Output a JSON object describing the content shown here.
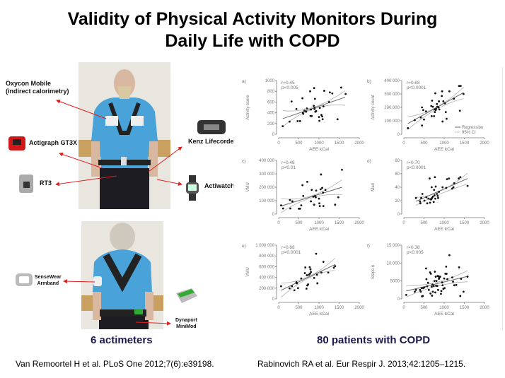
{
  "title": {
    "line1": "Validity of Physical Activity Monitors During",
    "line2": "Daily Life with COPD"
  },
  "devices": {
    "oxycon": {
      "line1": "Oxycon Mobile",
      "line2": "(indirect calorimetry)"
    },
    "actigraph": "Actigraph GT3X",
    "rt3": "RT3",
    "kenz": "Kenz Lifecorder",
    "actiwatch": "Actiwatch",
    "sensewear": {
      "line1": "SenseWear",
      "line2": "Armband"
    },
    "dynaport": {
      "line1": "Dynaport",
      "line2": "MiniMod"
    }
  },
  "captions": {
    "left": "6 actimeters",
    "right": "80 patients with COPD"
  },
  "references": {
    "left": "Van Remoortel H et al. PLoS One 2012;7(6):e39198.",
    "right": "Rabinovich RA et al. Eur Respir J. 2013;42:1205–1215."
  },
  "colors": {
    "arrow": "#e02020",
    "caption": "#1a1a4e",
    "points": "#111111",
    "regression": "#666666",
    "ci": "#b0b0b0",
    "shirt": "#4aa3d8"
  },
  "chart_data": [
    {
      "type": "scatter",
      "panel": "a)",
      "xlabel": "AEE kCal",
      "ylabel": "Activity score",
      "r": "r=0.45",
      "p": "p<0.005",
      "xlim": [
        0,
        2000
      ],
      "ylim": [
        0,
        1000
      ],
      "xticks": [
        "0",
        "500",
        "1000",
        "1500",
        "2000"
      ],
      "yticks": [
        "0",
        "200",
        "400",
        "600",
        "800",
        "1000"
      ],
      "points": [
        [
          100,
          150
        ],
        [
          270,
          235
        ],
        [
          320,
          610
        ],
        [
          440,
          470
        ],
        [
          470,
          245
        ],
        [
          530,
          245
        ],
        [
          590,
          670
        ],
        [
          600,
          400
        ],
        [
          610,
          380
        ],
        [
          640,
          440
        ],
        [
          680,
          420
        ],
        [
          700,
          480
        ],
        [
          780,
          800
        ],
        [
          790,
          340
        ],
        [
          820,
          340
        ],
        [
          800,
          460
        ],
        [
          870,
          530
        ],
        [
          880,
          860
        ],
        [
          890,
          490
        ],
        [
          890,
          470
        ],
        [
          900,
          660
        ],
        [
          910,
          420
        ],
        [
          930,
          430
        ],
        [
          1000,
          320
        ],
        [
          1010,
          250
        ],
        [
          1020,
          490
        ],
        [
          1060,
          360
        ],
        [
          1080,
          330
        ],
        [
          1090,
          280
        ],
        [
          1110,
          520
        ],
        [
          1130,
          810
        ],
        [
          1250,
          600
        ],
        [
          1270,
          780
        ],
        [
          1330,
          760
        ],
        [
          1460,
          280
        ],
        [
          1550,
          870
        ],
        [
          1660,
          750
        ]
      ],
      "regression": [
        [
          100,
          290
        ],
        [
          1650,
          690
        ]
      ],
      "ci_upper": [
        [
          100,
          440
        ],
        [
          850,
          500
        ],
        [
          1650,
          810
        ]
      ],
      "ci_lower": [
        [
          100,
          140
        ],
        [
          850,
          470
        ],
        [
          1650,
          540
        ]
      ]
    },
    {
      "type": "scatter",
      "panel": "b)",
      "xlabel": "AEE kCal",
      "ylabel": "Activity count",
      "r": "r=0.68",
      "p": "p<0.0001",
      "xlim": [
        0,
        2000
      ],
      "ylim": [
        0,
        400000
      ],
      "xticks": [
        "0",
        "500",
        "1000",
        "1500",
        "2000"
      ],
      "yticks": [
        "0",
        "100 000",
        "200 000",
        "300 000",
        "400 000"
      ],
      "legend": [
        "Regression",
        "95% CI"
      ],
      "points": [
        [
          100,
          45000
        ],
        [
          270,
          105000
        ],
        [
          420,
          125000
        ],
        [
          450,
          65000
        ],
        [
          450,
          200000
        ],
        [
          480,
          180000
        ],
        [
          500,
          110000
        ],
        [
          550,
          170000
        ],
        [
          680,
          210000
        ],
        [
          690,
          135000
        ],
        [
          700,
          250000
        ],
        [
          720,
          205000
        ],
        [
          750,
          135000
        ],
        [
          760,
          185000
        ],
        [
          770,
          165000
        ],
        [
          780,
          305000
        ],
        [
          790,
          180000
        ],
        [
          800,
          190000
        ],
        [
          820,
          225000
        ],
        [
          830,
          205000
        ],
        [
          860,
          200000
        ],
        [
          870,
          245000
        ],
        [
          880,
          185000
        ],
        [
          940,
          285000
        ],
        [
          950,
          320000
        ],
        [
          960,
          95000
        ],
        [
          980,
          245000
        ],
        [
          1020,
          230000
        ],
        [
          1040,
          165000
        ],
        [
          1060,
          115000
        ],
        [
          1130,
          320000
        ],
        [
          1240,
          265000
        ],
        [
          1370,
          360000
        ],
        [
          1410,
          360000
        ],
        [
          1390,
          175000
        ],
        [
          1480,
          300000
        ]
      ],
      "regression": [
        [
          100,
          80000
        ],
        [
          1480,
          310000
        ]
      ],
      "ci_upper": [
        [
          100,
          130000
        ],
        [
          800,
          200000
        ],
        [
          1480,
          350000
        ]
      ],
      "ci_lower": [
        [
          100,
          35000
        ],
        [
          800,
          185000
        ],
        [
          1480,
          265000
        ]
      ]
    },
    {
      "type": "scatter",
      "panel": "c)",
      "xlabel": "AEE kCal",
      "ylabel": "VMU",
      "r": "r=0.48",
      "p": "p<0.01",
      "xlim": [
        0,
        2000
      ],
      "ylim": [
        0,
        400000
      ],
      "xticks": [
        "0",
        "500",
        "1000",
        "1500",
        "2000"
      ],
      "yticks": [
        "0",
        "100 000",
        "200 000",
        "300 000",
        "400 000"
      ],
      "points": [
        [
          60,
          65000
        ],
        [
          110,
          42000
        ],
        [
          280,
          105000
        ],
        [
          290,
          42000
        ],
        [
          340,
          95000
        ],
        [
          500,
          40000
        ],
        [
          530,
          40000
        ],
        [
          560,
          65000
        ],
        [
          590,
          215000
        ],
        [
          610,
          135000
        ],
        [
          710,
          240000
        ],
        [
          800,
          95000
        ],
        [
          820,
          180000
        ],
        [
          860,
          130000
        ],
        [
          880,
          70000
        ],
        [
          900,
          135000
        ],
        [
          920,
          125000
        ],
        [
          930,
          175000
        ],
        [
          1000,
          115000
        ],
        [
          1010,
          80000
        ],
        [
          1020,
          60000
        ],
        [
          1040,
          185000
        ],
        [
          1050,
          295000
        ],
        [
          1080,
          195000
        ],
        [
          1100,
          160000
        ],
        [
          1110,
          60000
        ],
        [
          1160,
          180000
        ],
        [
          1400,
          70000
        ],
        [
          1480,
          125000
        ],
        [
          1570,
          330000
        ]
      ],
      "regression": [
        [
          60,
          60000
        ],
        [
          1570,
          200000
        ]
      ],
      "ci_upper": [
        [
          60,
          115000
        ],
        [
          800,
          135000
        ],
        [
          1570,
          255000
        ]
      ],
      "ci_lower": [
        [
          60,
          10000
        ],
        [
          800,
          120000
        ],
        [
          1570,
          145000
        ]
      ]
    },
    {
      "type": "scatter",
      "panel": "d)",
      "xlabel": "AEE kCal",
      "ylabel": "Mad",
      "r": "r=0.70",
      "p": "p<0.0001",
      "xlim": [
        0,
        2000
      ],
      "ylim": [
        0,
        80
      ],
      "xticks": [
        "0",
        "500",
        "1000",
        "1500",
        "2000"
      ],
      "yticks": [
        "0",
        "20",
        "40",
        "60",
        "80"
      ],
      "points": [
        [
          300,
          24
        ],
        [
          400,
          19
        ],
        [
          410,
          16
        ],
        [
          430,
          24
        ],
        [
          460,
          30
        ],
        [
          510,
          20
        ],
        [
          560,
          25
        ],
        [
          580,
          16
        ],
        [
          610,
          23
        ],
        [
          640,
          53
        ],
        [
          650,
          17
        ],
        [
          660,
          22
        ],
        [
          680,
          22
        ],
        [
          690,
          40
        ],
        [
          700,
          24
        ],
        [
          720,
          26
        ],
        [
          740,
          18
        ],
        [
          750,
          36
        ],
        [
          760,
          28
        ],
        [
          770,
          55
        ],
        [
          780,
          23
        ],
        [
          790,
          41
        ],
        [
          820,
          30
        ],
        [
          840,
          27
        ],
        [
          850,
          24
        ],
        [
          870,
          33
        ],
        [
          960,
          40
        ],
        [
          1050,
          39
        ],
        [
          1070,
          52
        ],
        [
          1120,
          53
        ],
        [
          1200,
          38
        ],
        [
          1230,
          40
        ],
        [
          1250,
          46
        ],
        [
          1360,
          53
        ],
        [
          1400,
          55
        ],
        [
          1580,
          42
        ]
      ],
      "regression": [
        [
          300,
          19
        ],
        [
          1580,
          53
        ]
      ],
      "ci_upper": [
        [
          300,
          25
        ],
        [
          900,
          34
        ],
        [
          1580,
          61
        ]
      ],
      "ci_lower": [
        [
          300,
          13
        ],
        [
          900,
          30
        ],
        [
          1580,
          45
        ]
      ]
    },
    {
      "type": "scatter",
      "panel": "e)",
      "xlabel": "AEE kCal",
      "ylabel": "VMU",
      "r": "r=0.68",
      "p": "p<0.0001",
      "xlim": [
        0,
        2000
      ],
      "ylim": [
        0,
        1000000
      ],
      "xticks": [
        "0",
        "500",
        "1000",
        "1500",
        "2000"
      ],
      "yticks": [
        "0",
        "200 000",
        "400 000",
        "600 000",
        "800 000",
        "1 000 000"
      ],
      "points": [
        [
          60,
          235000
        ],
        [
          270,
          195000
        ],
        [
          330,
          235000
        ],
        [
          390,
          160000
        ],
        [
          440,
          310000
        ],
        [
          450,
          290000
        ],
        [
          480,
          200000
        ],
        [
          560,
          380000
        ],
        [
          650,
          480000
        ],
        [
          660,
          585000
        ],
        [
          690,
          190000
        ],
        [
          700,
          440000
        ],
        [
          710,
          250000
        ],
        [
          730,
          270000
        ],
        [
          750,
          450000
        ],
        [
          770,
          590000
        ],
        [
          780,
          470000
        ],
        [
          790,
          550000
        ],
        [
          800,
          500000
        ],
        [
          880,
          390000
        ],
        [
          930,
          840000
        ],
        [
          950,
          450000
        ],
        [
          960,
          290000
        ],
        [
          1060,
          490000
        ],
        [
          1110,
          690000
        ],
        [
          1230,
          490000
        ],
        [
          1370,
          580000
        ],
        [
          1400,
          610000
        ]
      ],
      "regression": [
        [
          60,
          160000
        ],
        [
          1400,
          640000
        ]
      ],
      "ci_upper": [
        [
          60,
          290000
        ],
        [
          750,
          420000
        ],
        [
          1400,
          760000
        ]
      ],
      "ci_lower": [
        [
          60,
          30000
        ],
        [
          750,
          390000
        ],
        [
          1400,
          530000
        ]
      ]
    },
    {
      "type": "scatter",
      "panel": "f)",
      "xlabel": "AEE kCal",
      "ylabel": "Steps n",
      "r": "r=0.38",
      "p": "p<0.005",
      "xlim": [
        0,
        2000
      ],
      "ylim": [
        0,
        15000
      ],
      "xticks": [
        "0",
        "500",
        "1000",
        "1500",
        "2000"
      ],
      "yticks": [
        "0",
        "5000",
        "10 000",
        "15 000"
      ],
      "points": [
        [
          60,
          1100
        ],
        [
          270,
          2000
        ],
        [
          300,
          2500
        ],
        [
          400,
          2500
        ],
        [
          420,
          2000
        ],
        [
          440,
          3000
        ],
        [
          450,
          700
        ],
        [
          470,
          800
        ],
        [
          480,
          3000
        ],
        [
          510,
          3200
        ],
        [
          550,
          8500
        ],
        [
          560,
          5500
        ],
        [
          580,
          3500
        ],
        [
          600,
          4500
        ],
        [
          620,
          2500
        ],
        [
          650,
          7400
        ],
        [
          660,
          1500
        ],
        [
          670,
          7000
        ],
        [
          690,
          3400
        ],
        [
          700,
          900
        ],
        [
          710,
          4000
        ],
        [
          720,
          2000
        ],
        [
          740,
          3600
        ],
        [
          760,
          5000
        ],
        [
          770,
          7600
        ],
        [
          780,
          1800
        ],
        [
          790,
          6200
        ],
        [
          800,
          3700
        ],
        [
          810,
          5000
        ],
        [
          830,
          3600
        ],
        [
          840,
          6400
        ],
        [
          850,
          2500
        ],
        [
          860,
          6300
        ],
        [
          870,
          5600
        ],
        [
          880,
          5900
        ],
        [
          900,
          6200
        ],
        [
          920,
          1400
        ],
        [
          930,
          2200
        ],
        [
          950,
          4600
        ],
        [
          960,
          3800
        ],
        [
          980,
          2800
        ],
        [
          1000,
          5700
        ],
        [
          1010,
          3000
        ],
        [
          1030,
          7000
        ],
        [
          1050,
          9000
        ],
        [
          1060,
          7000
        ],
        [
          1080,
          5500
        ],
        [
          1130,
          12200
        ],
        [
          1200,
          6000
        ],
        [
          1220,
          4800
        ],
        [
          1250,
          3800
        ],
        [
          1300,
          3900
        ],
        [
          1370,
          8800
        ],
        [
          1400,
          800
        ],
        [
          1420,
          5600
        ],
        [
          1480,
          2000
        ],
        [
          1580,
          6200
        ]
      ],
      "regression": [
        [
          60,
          2200
        ],
        [
          1580,
          6300
        ]
      ],
      "ci_upper": [
        [
          60,
          3700
        ],
        [
          800,
          4600
        ],
        [
          1580,
          7900
        ]
      ],
      "ci_lower": [
        [
          60,
          500
        ],
        [
          800,
          3500
        ],
        [
          1580,
          4800
        ]
      ]
    }
  ]
}
